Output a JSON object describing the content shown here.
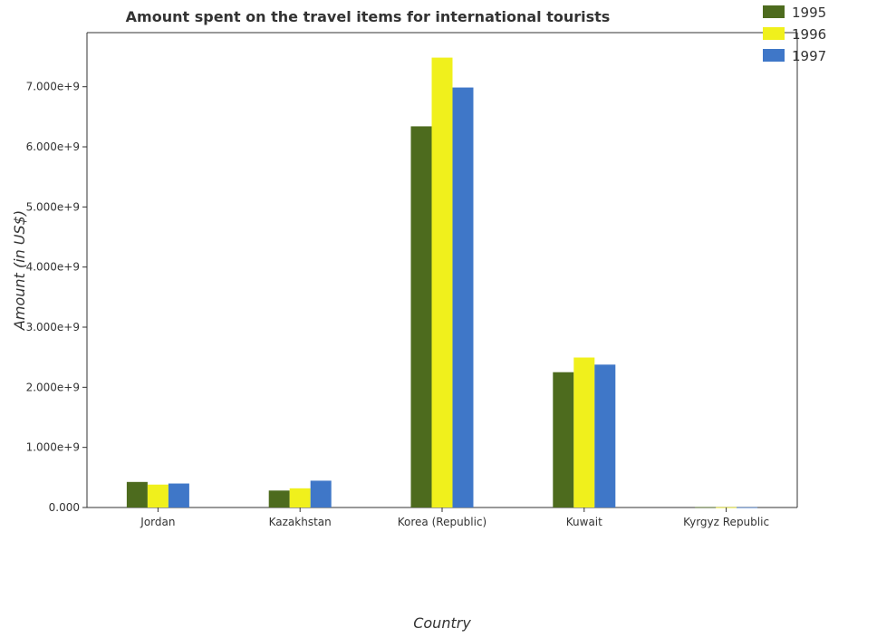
{
  "chart_data": {
    "type": "bar",
    "title": "Amount spent on the travel items for international tourists",
    "xlabel": "Country",
    "ylabel": "Amount (in US$)",
    "categories": [
      "Jordan",
      "Kazakhstan",
      "Korea (Republic)",
      "Kuwait",
      "Kyrgyz Republic"
    ],
    "series": [
      {
        "name": "1995",
        "color": "#4d6b1e",
        "values": [
          425000000,
          282000000,
          6341000000,
          2251000000,
          7000000
        ]
      },
      {
        "name": "1996",
        "color": "#f0f01c",
        "values": [
          381000000,
          319000000,
          7484000000,
          2495000000,
          5000000
        ]
      },
      {
        "name": "1997",
        "color": "#3f77c8",
        "values": [
          399000000,
          446000000,
          6987000000,
          2377000000,
          4000000
        ]
      }
    ],
    "yticks": [
      0,
      1000000000,
      2000000000,
      3000000000,
      4000000000,
      5000000000,
      6000000000,
      7000000000
    ],
    "ytick_labels": [
      "0.000",
      "1.000e+9",
      "2.000e+9",
      "3.000e+9",
      "4.000e+9",
      "5.000e+9",
      "6.000e+9",
      "7.000e+9"
    ],
    "ylim": [
      0,
      7900000000
    ],
    "grid": false,
    "legend_placement": "top-right"
  }
}
